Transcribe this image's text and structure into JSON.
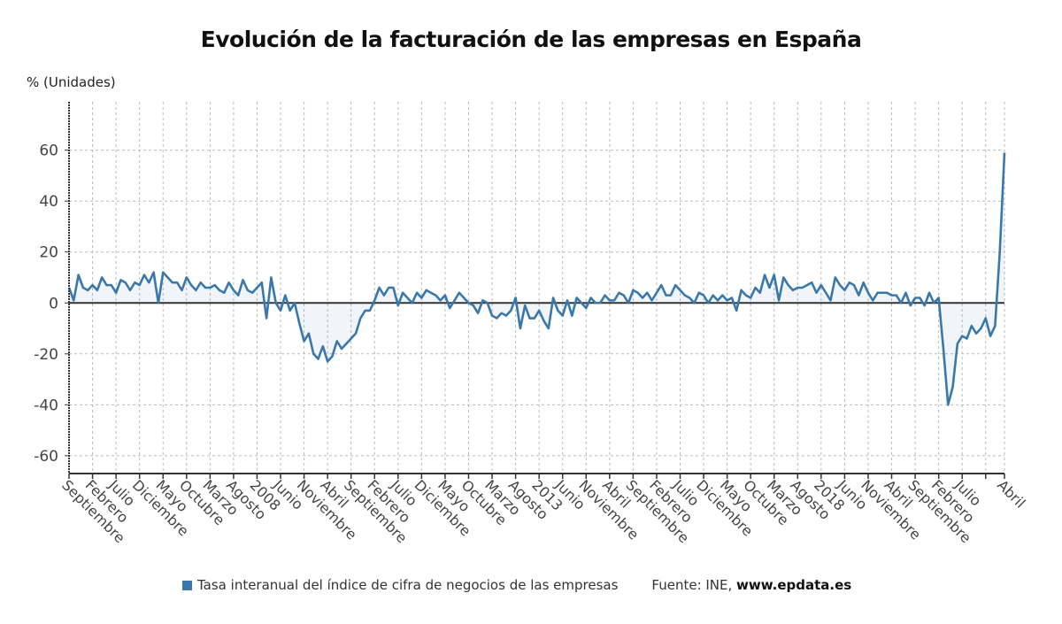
{
  "chart_data": {
    "type": "line",
    "title": "Evolución de la facturación de las empresas en España",
    "ylabel": "% (Unidades)",
    "xlabel": "",
    "ylim": [
      -67,
      79
    ],
    "yticks": [
      60,
      40,
      20,
      0,
      -20,
      -40,
      -60
    ],
    "grid": true,
    "legend_position": "bottom",
    "x_start": "2004-09",
    "x_end": "2021-04",
    "xtick_labels": [
      "Septiembre",
      "Febrero",
      "Julio",
      "Diciembre",
      "Mayo",
      "Octubre",
      "Marzo",
      "Agosto",
      "2008",
      "Junio",
      "Noviembre",
      "Abril",
      "Septiembre",
      "Febrero",
      "Julio",
      "Diciembre",
      "Mayo",
      "Octubre",
      "Marzo",
      "Agosto",
      "2013",
      "Junio",
      "Noviembre",
      "Abril",
      "Septiembre",
      "Febrero",
      "Julio",
      "Diciembre",
      "Mayo",
      "Octubre",
      "Marzo",
      "Agosto",
      "2018",
      "Junio",
      "Noviembre",
      "Abril",
      "Septiembre",
      "Febrero",
      "Julio",
      "",
      "Abril"
    ],
    "series": [
      {
        "name": "Tasa interanual del índice de cifra de negocios de las empresas",
        "color": "#3a78ab",
        "values": [
          6,
          1,
          11,
          6,
          5,
          7,
          5,
          10,
          7,
          7,
          4,
          9,
          8,
          5,
          8,
          7,
          11,
          8,
          12,
          0,
          12,
          10,
          8,
          8,
          5,
          10,
          7,
          5,
          8,
          6,
          6,
          7,
          5,
          4,
          8,
          5,
          3,
          9,
          5,
          4,
          6,
          8,
          -6,
          10,
          0,
          -3,
          3,
          -3,
          0,
          -8,
          -15,
          -12,
          -20,
          -22,
          -17,
          -23,
          -21,
          -15,
          -18,
          -16,
          -14,
          -12,
          -6,
          -3,
          -3,
          1,
          6,
          3,
          6,
          6,
          -1,
          4,
          2,
          0,
          4,
          2,
          5,
          4,
          3,
          1,
          3,
          -2,
          1,
          4,
          2,
          0,
          -1,
          -4,
          1,
          0,
          -5,
          -6,
          -4,
          -5,
          -3,
          2,
          -10,
          -1,
          -6,
          -6,
          -3,
          -7,
          -10,
          2,
          -3,
          -5,
          1,
          -5,
          2,
          0,
          -2,
          2,
          0,
          0,
          3,
          1,
          1,
          4,
          3,
          0,
          5,
          4,
          2,
          4,
          1,
          4,
          7,
          3,
          3,
          7,
          5,
          3,
          2,
          0,
          4,
          3,
          0,
          3,
          1,
          3,
          1,
          2,
          -3,
          5,
          3,
          2,
          6,
          4,
          11,
          6,
          11,
          1,
          10,
          7,
          5,
          6,
          6,
          7,
          8,
          4,
          7,
          4,
          1,
          10,
          7,
          5,
          8,
          7,
          3,
          8,
          4,
          1,
          4,
          4,
          4,
          3,
          3,
          0,
          4,
          -1,
          2,
          2,
          -1,
          4,
          0,
          2,
          -18,
          -40,
          -33,
          -16,
          -13,
          -14,
          -9,
          -12,
          -10,
          -6,
          -13,
          -9,
          20,
          59
        ]
      }
    ]
  },
  "legend": {
    "label": "Tasa interanual del índice de cifra de negocios de las empresas",
    "source_prefix": "Fuente: INE, ",
    "source_site": "www.epdata.es"
  }
}
